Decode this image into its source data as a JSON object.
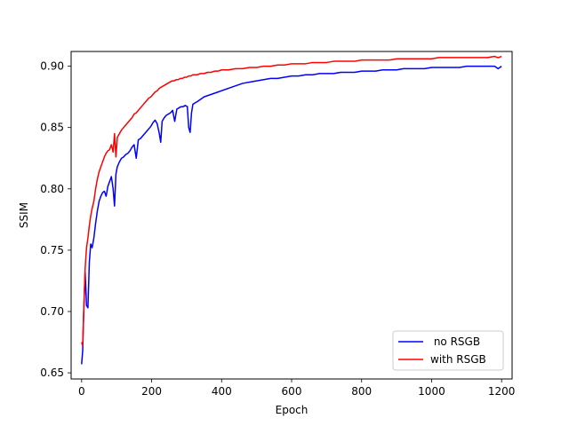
{
  "chart_data": {
    "type": "line",
    "title": "",
    "xlabel": "Epoch",
    "ylabel": "SSIM",
    "xlim": [
      -30,
      1230
    ],
    "ylim": [
      0.645,
      0.912
    ],
    "xticks": [
      0,
      200,
      400,
      600,
      800,
      1000,
      1200
    ],
    "xtick_labels": [
      "0",
      "200",
      "400",
      "600",
      "800",
      "1000",
      "1200"
    ],
    "yticks": [
      0.65,
      0.7,
      0.75,
      0.8,
      0.85,
      0.9
    ],
    "ytick_labels": [
      "0.65",
      "0.70",
      "0.75",
      "0.80",
      "0.85",
      "0.90"
    ],
    "grid": false,
    "legend_position": "lower-right",
    "series": [
      {
        "name": " no RSGB",
        "color": "#0000ff",
        "x": [
          0,
          3,
          6,
          10,
          14,
          18,
          22,
          26,
          30,
          35,
          40,
          45,
          50,
          55,
          60,
          65,
          70,
          75,
          80,
          85,
          90,
          94,
          98,
          102,
          108,
          114,
          120,
          126,
          132,
          138,
          144,
          150,
          156,
          162,
          168,
          174,
          180,
          186,
          192,
          198,
          204,
          210,
          216,
          222,
          226,
          230,
          236,
          242,
          248,
          254,
          260,
          266,
          272,
          278,
          284,
          290,
          296,
          302,
          306,
          310,
          314,
          318,
          324,
          330,
          340,
          350,
          360,
          370,
          380,
          390,
          400,
          420,
          440,
          460,
          480,
          500,
          520,
          540,
          560,
          580,
          600,
          620,
          640,
          660,
          680,
          700,
          720,
          740,
          760,
          780,
          800,
          820,
          840,
          860,
          880,
          900,
          920,
          940,
          960,
          980,
          1000,
          1020,
          1040,
          1060,
          1080,
          1100,
          1120,
          1140,
          1160,
          1180,
          1190,
          1200
        ],
        "y": [
          0.657,
          0.668,
          0.7,
          0.732,
          0.705,
          0.703,
          0.74,
          0.755,
          0.752,
          0.76,
          0.772,
          0.782,
          0.79,
          0.794,
          0.797,
          0.798,
          0.794,
          0.802,
          0.806,
          0.81,
          0.8,
          0.786,
          0.812,
          0.818,
          0.822,
          0.825,
          0.826,
          0.828,
          0.829,
          0.831,
          0.834,
          0.836,
          0.825,
          0.84,
          0.841,
          0.843,
          0.845,
          0.847,
          0.849,
          0.851,
          0.854,
          0.856,
          0.853,
          0.845,
          0.838,
          0.855,
          0.858,
          0.86,
          0.861,
          0.862,
          0.864,
          0.855,
          0.865,
          0.866,
          0.867,
          0.867,
          0.868,
          0.867,
          0.85,
          0.846,
          0.862,
          0.869,
          0.87,
          0.871,
          0.873,
          0.875,
          0.876,
          0.877,
          0.878,
          0.879,
          0.88,
          0.882,
          0.884,
          0.886,
          0.887,
          0.888,
          0.889,
          0.89,
          0.89,
          0.891,
          0.892,
          0.892,
          0.893,
          0.893,
          0.894,
          0.894,
          0.894,
          0.895,
          0.895,
          0.895,
          0.896,
          0.896,
          0.896,
          0.897,
          0.897,
          0.897,
          0.898,
          0.898,
          0.898,
          0.898,
          0.899,
          0.899,
          0.899,
          0.899,
          0.899,
          0.9,
          0.9,
          0.9,
          0.9,
          0.9,
          0.898,
          0.9
        ]
      },
      {
        "name": "with RSGB",
        "color": "#ff0000",
        "x": [
          0,
          3,
          6,
          10,
          14,
          18,
          22,
          26,
          30,
          35,
          40,
          45,
          50,
          55,
          60,
          65,
          70,
          75,
          80,
          85,
          90,
          94,
          98,
          102,
          108,
          114,
          120,
          126,
          132,
          138,
          144,
          150,
          156,
          162,
          168,
          174,
          180,
          186,
          192,
          198,
          204,
          210,
          216,
          222,
          228,
          234,
          240,
          246,
          252,
          258,
          264,
          270,
          276,
          282,
          288,
          294,
          300,
          306,
          312,
          318,
          324,
          330,
          340,
          350,
          360,
          370,
          380,
          390,
          400,
          420,
          440,
          460,
          480,
          500,
          520,
          540,
          560,
          580,
          600,
          620,
          640,
          660,
          680,
          700,
          720,
          740,
          760,
          780,
          800,
          820,
          840,
          860,
          880,
          900,
          920,
          940,
          960,
          980,
          1000,
          1020,
          1040,
          1060,
          1080,
          1100,
          1120,
          1140,
          1160,
          1180,
          1190,
          1200
        ],
        "y": [
          0.675,
          0.672,
          0.7,
          0.735,
          0.752,
          0.76,
          0.77,
          0.778,
          0.784,
          0.79,
          0.8,
          0.808,
          0.814,
          0.818,
          0.822,
          0.826,
          0.829,
          0.831,
          0.832,
          0.836,
          0.83,
          0.845,
          0.826,
          0.842,
          0.845,
          0.848,
          0.85,
          0.852,
          0.854,
          0.856,
          0.858,
          0.861,
          0.862,
          0.864,
          0.866,
          0.868,
          0.87,
          0.872,
          0.874,
          0.875,
          0.877,
          0.879,
          0.88,
          0.882,
          0.883,
          0.884,
          0.885,
          0.886,
          0.887,
          0.888,
          0.888,
          0.889,
          0.889,
          0.89,
          0.89,
          0.891,
          0.891,
          0.892,
          0.892,
          0.893,
          0.893,
          0.893,
          0.894,
          0.894,
          0.895,
          0.895,
          0.896,
          0.896,
          0.897,
          0.897,
          0.898,
          0.898,
          0.899,
          0.899,
          0.9,
          0.9,
          0.901,
          0.901,
          0.902,
          0.902,
          0.902,
          0.903,
          0.903,
          0.903,
          0.904,
          0.904,
          0.904,
          0.904,
          0.905,
          0.905,
          0.905,
          0.905,
          0.905,
          0.906,
          0.906,
          0.906,
          0.906,
          0.906,
          0.906,
          0.907,
          0.907,
          0.907,
          0.907,
          0.907,
          0.907,
          0.907,
          0.907,
          0.908,
          0.907,
          0.908
        ]
      }
    ]
  }
}
